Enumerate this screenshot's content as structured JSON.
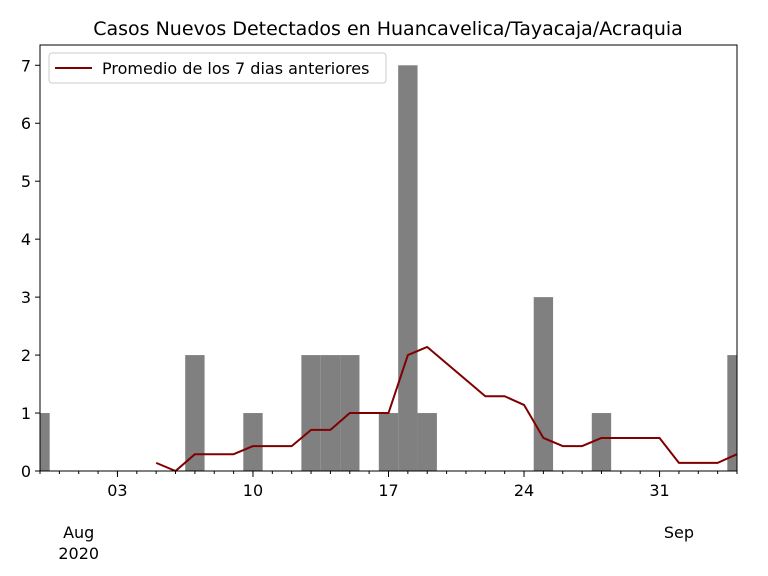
{
  "chart_data": {
    "type": "bar",
    "title": "Casos Nuevos Detectados en Huancavelica/Tayacaja/Acraquia",
    "xlabel": "",
    "ylabel": "",
    "x_range": [
      "2020-07-30",
      "2020-09-04"
    ],
    "ylim": [
      0,
      7.35
    ],
    "y_ticks": [
      "0",
      "1",
      "2",
      "3",
      "4",
      "5",
      "6",
      "7"
    ],
    "x_ticks": [
      {
        "date": "2020-08-03",
        "label": "03"
      },
      {
        "date": "2020-08-10",
        "label": "10"
      },
      {
        "date": "2020-08-17",
        "label": "17"
      },
      {
        "date": "2020-08-24",
        "label": "24"
      },
      {
        "date": "2020-08-31",
        "label": "31"
      }
    ],
    "month_labels": [
      {
        "date": "2020-08-01",
        "label": "Aug",
        "year": "2020"
      },
      {
        "date": "2020-09-01",
        "label": "Sep",
        "year": ""
      }
    ],
    "grid": false,
    "legend_position": "top-left",
    "colors": {
      "bars": "#808080",
      "line": "#800000"
    },
    "bars": {
      "dates": [
        "2020-07-30",
        "2020-08-07",
        "2020-08-10",
        "2020-08-13",
        "2020-08-14",
        "2020-08-15",
        "2020-08-17",
        "2020-08-18",
        "2020-08-19",
        "2020-08-25",
        "2020-08-28",
        "2020-09-04"
      ],
      "values": [
        1,
        2,
        1,
        2,
        2,
        2,
        1,
        7,
        1,
        3,
        1,
        2
      ]
    },
    "series": [
      {
        "name": "Promedio de los 7 dias anteriores",
        "dates": [
          "2020-08-05",
          "2020-08-06",
          "2020-08-07",
          "2020-08-08",
          "2020-08-09",
          "2020-08-10",
          "2020-08-11",
          "2020-08-12",
          "2020-08-13",
          "2020-08-14",
          "2020-08-15",
          "2020-08-16",
          "2020-08-17",
          "2020-08-18",
          "2020-08-19",
          "2020-08-22",
          "2020-08-23",
          "2020-08-24",
          "2020-08-25",
          "2020-08-26",
          "2020-08-27",
          "2020-08-28",
          "2020-08-31",
          "2020-09-01",
          "2020-09-02",
          "2020-09-03",
          "2020-09-04"
        ],
        "values": [
          0.14,
          0,
          0.29,
          0.29,
          0.29,
          0.43,
          0.43,
          0.43,
          0.71,
          0.71,
          1.0,
          1.0,
          1.0,
          2.0,
          2.14,
          1.29,
          1.29,
          1.14,
          0.57,
          0.43,
          0.43,
          0.57,
          0.57,
          0.14,
          0.14,
          0.14,
          0.29
        ]
      }
    ]
  }
}
